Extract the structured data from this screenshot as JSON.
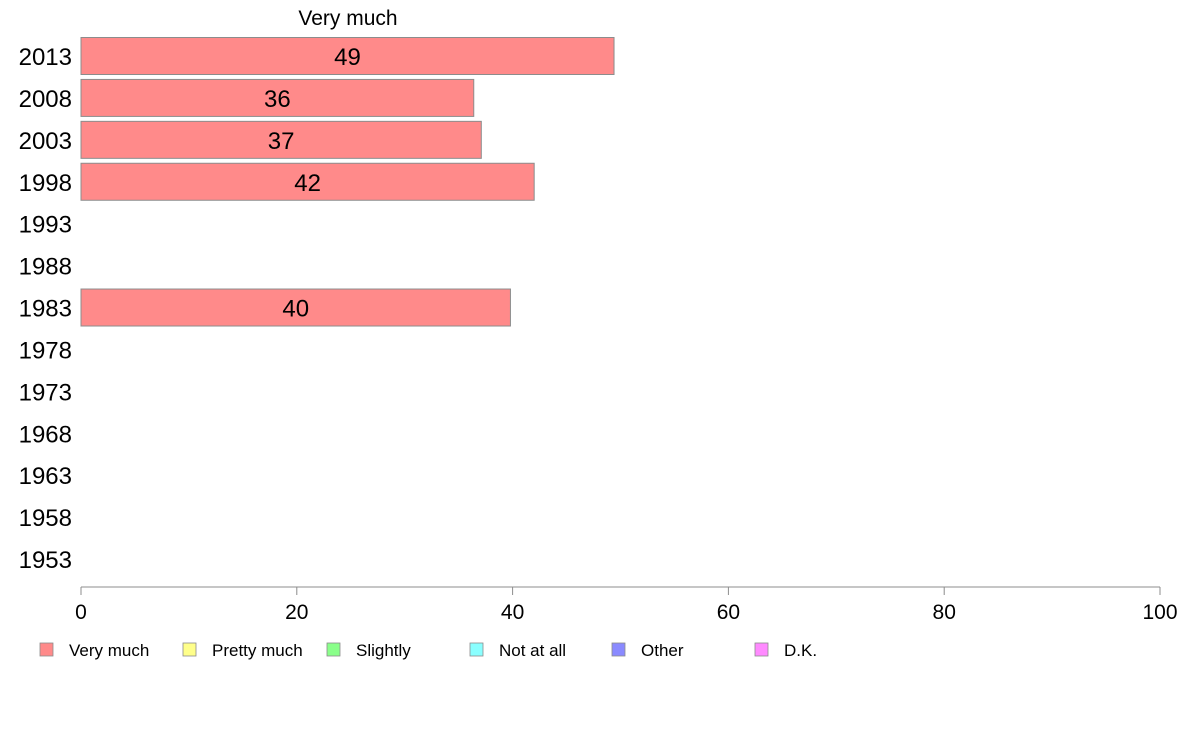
{
  "chart_data": {
    "type": "bar",
    "orientation": "horizontal",
    "title": "Very much",
    "categories": [
      "2013",
      "2008",
      "2003",
      "1998",
      "1993",
      "1988",
      "1983",
      "1978",
      "1973",
      "1968",
      "1963",
      "1958",
      "1953"
    ],
    "values": [
      49.4,
      36.4,
      37.1,
      42.0,
      null,
      null,
      39.8,
      null,
      null,
      null,
      null,
      null,
      null
    ],
    "data_labels": [
      "49",
      "36",
      "37",
      "42",
      "",
      "",
      "40",
      "",
      "",
      "",
      "",
      "",
      ""
    ],
    "xlim": [
      0,
      100
    ],
    "xticks": [
      "0",
      "20",
      "40",
      "60",
      "80",
      "100"
    ],
    "xlabel": "",
    "ylabel": "",
    "grid": false,
    "bar_color": "#ff8a8a",
    "bar_border_color": "#8c8c8c",
    "legend": {
      "placement": "bottom",
      "entries": [
        {
          "name": "Very much",
          "color": "#ff8a8a"
        },
        {
          "name": "Pretty much",
          "color": "#ffff8a"
        },
        {
          "name": "Slightly",
          "color": "#8aff8a"
        },
        {
          "name": "Not at all",
          "color": "#8affff"
        },
        {
          "name": "Other",
          "color": "#8a8aff"
        },
        {
          "name": "D.K.",
          "color": "#ff8aff"
        }
      ]
    }
  }
}
